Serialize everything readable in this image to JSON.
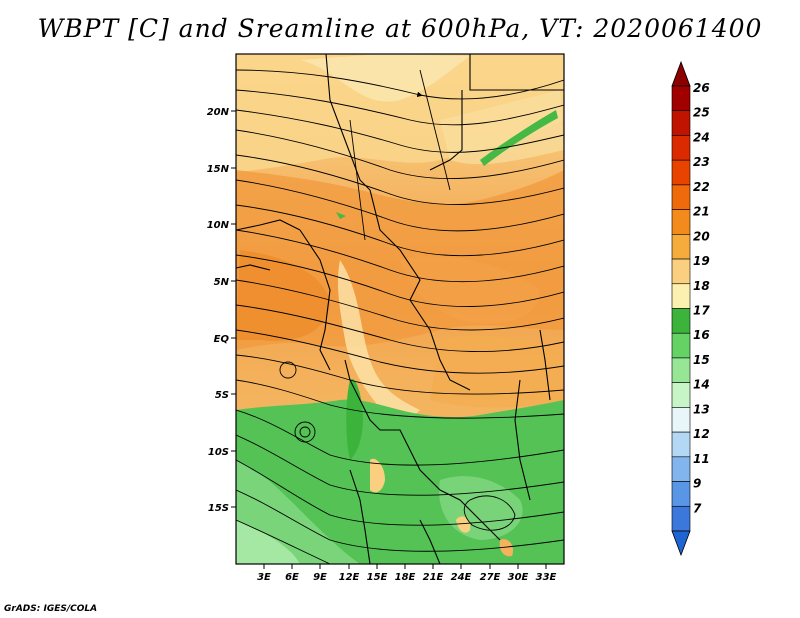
{
  "title": "WBPT [C] and Sreamline at 600hPa, VT: 2020061400",
  "footer": "GrADS: IGES/COLA",
  "axes": {
    "lat_ticks": [
      "20N",
      "15N",
      "10N",
      "5N",
      "EQ",
      "5S",
      "10S",
      "15S"
    ],
    "lon_ticks": [
      "3E",
      "6E",
      "9E",
      "12E",
      "15E",
      "18E",
      "21E",
      "24E",
      "27E",
      "30E",
      "33E"
    ]
  },
  "colorbar": {
    "labels": [
      "26",
      "25",
      "24",
      "23",
      "22",
      "21",
      "20",
      "19",
      "18",
      "17",
      "16",
      "15",
      "14",
      "13",
      "12",
      "11",
      "9",
      "7"
    ],
    "colors": [
      "#a00000",
      "#c01400",
      "#dc2a00",
      "#e84400",
      "#ee6a0a",
      "#f28a1c",
      "#f6ac3c",
      "#fad080",
      "#fcf0b0",
      "#3cb43c",
      "#64d264",
      "#96e696",
      "#c8f5c8",
      "#e8f6fa",
      "#b4d8f4",
      "#82b4ee",
      "#5a96e6",
      "#3c78dc"
    ],
    "top_arrow_color": "#8c0000",
    "bottom_arrow_color": "#1e64d2"
  }
}
